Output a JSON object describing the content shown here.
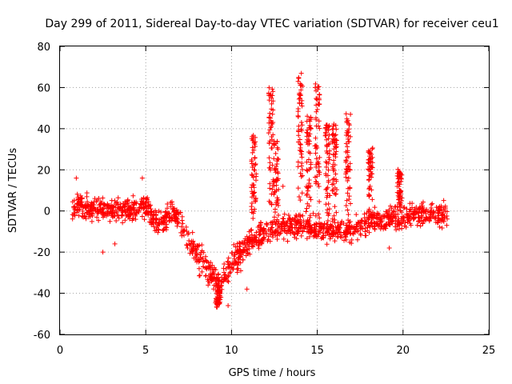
{
  "chart_data": {
    "type": "scatter",
    "title": "Day 299 of 2011, Sidereal Day-to-day VTEC variation (SDTVAR) for receiver ceu1",
    "xlabel": "GPS time / hours",
    "ylabel": "SDTVAR / TECUs",
    "xlim": [
      0,
      25
    ],
    "ylim": [
      -60,
      80
    ],
    "xticks": [
      0,
      5,
      10,
      15,
      20,
      25
    ],
    "yticks": [
      -60,
      -40,
      -20,
      0,
      20,
      40,
      60,
      80
    ],
    "grid": true,
    "marker": "+",
    "color": "#ff0000",
    "series": [
      {
        "name": "SDTVAR",
        "baseline": [
          [
            0.7,
            0
          ],
          [
            1.0,
            2
          ],
          [
            2.0,
            1
          ],
          [
            3.0,
            0
          ],
          [
            4.0,
            1
          ],
          [
            5.0,
            2
          ],
          [
            5.5,
            -4
          ],
          [
            6.0,
            -6
          ],
          [
            6.5,
            0
          ],
          [
            7.0,
            -4
          ],
          [
            7.5,
            -14
          ],
          [
            8.0,
            -22
          ],
          [
            8.5,
            -26
          ],
          [
            9.0,
            -32
          ],
          [
            9.3,
            -38
          ],
          [
            9.6,
            -32
          ],
          [
            10.0,
            -24
          ],
          [
            10.5,
            -20
          ],
          [
            11.0,
            -16
          ],
          [
            12.0,
            -10
          ],
          [
            13.0,
            -8
          ],
          [
            14.0,
            -6
          ],
          [
            15.0,
            -8
          ],
          [
            16.0,
            -10
          ],
          [
            17.0,
            -10
          ],
          [
            18.0,
            -6
          ],
          [
            19.0,
            -4
          ],
          [
            20.0,
            -3
          ],
          [
            21.0,
            -2
          ],
          [
            22.0,
            -2
          ],
          [
            22.6,
            -1
          ]
        ],
        "spikes": [
          {
            "center": 9.2,
            "peak": -46
          },
          {
            "center": 11.3,
            "peak": 36
          },
          {
            "center": 12.3,
            "peak": 61
          },
          {
            "center": 12.6,
            "peak": 35
          },
          {
            "center": 14.0,
            "peak": 67
          },
          {
            "center": 14.5,
            "peak": 47
          },
          {
            "center": 15.0,
            "peak": 62
          },
          {
            "center": 15.6,
            "peak": 42
          },
          {
            "center": 16.0,
            "peak": 42
          },
          {
            "center": 16.8,
            "peak": 47
          },
          {
            "center": 18.1,
            "peak": 31
          },
          {
            "center": 19.8,
            "peak": 20
          }
        ],
        "outliers": [
          [
            0.95,
            16
          ],
          [
            2.5,
            -20
          ],
          [
            3.2,
            -16
          ],
          [
            4.8,
            16
          ],
          [
            9.8,
            -46
          ],
          [
            10.9,
            -38
          ],
          [
            13.0,
            12
          ],
          [
            19.2,
            -18
          ]
        ]
      }
    ]
  }
}
